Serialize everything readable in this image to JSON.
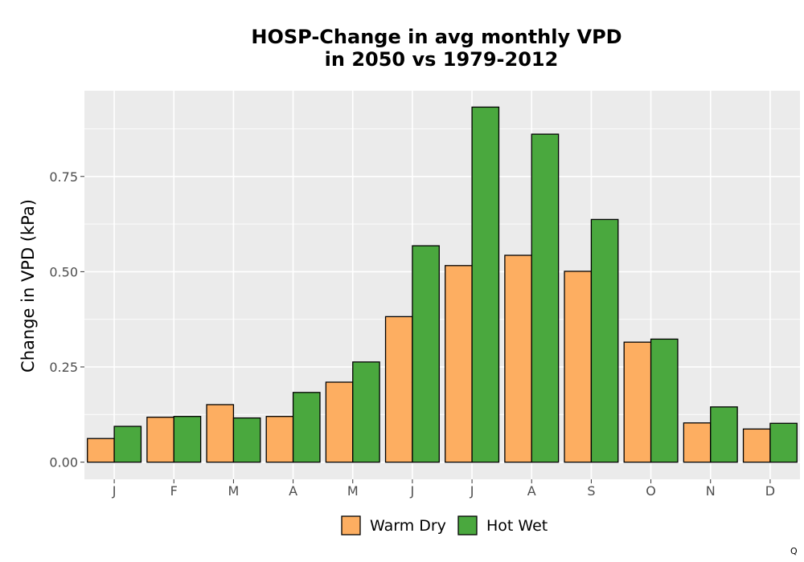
{
  "chart_data": {
    "type": "bar",
    "title": "HOSP-Change in avg monthly VPD",
    "subtitle": "in 2050 vs 1979-2012",
    "xlabel": "",
    "ylabel": "Change in VPD (kPa)",
    "categories": [
      "J",
      "F",
      "M",
      "A",
      "M",
      "J",
      "J",
      "A",
      "S",
      "O",
      "N",
      "D"
    ],
    "series": [
      {
        "name": "Warm Dry",
        "color": "#fdae61",
        "values": [
          0.062,
          0.118,
          0.151,
          0.12,
          0.21,
          0.382,
          0.516,
          0.543,
          0.501,
          0.315,
          0.103,
          0.087
        ]
      },
      {
        "name": "Hot Wet",
        "color": "#4aa83e",
        "values": [
          0.094,
          0.12,
          0.116,
          0.183,
          0.263,
          0.568,
          0.932,
          0.861,
          0.637,
          0.323,
          0.145,
          0.102
        ]
      }
    ],
    "ylim": [
      -0.045,
      0.975
    ],
    "yticks": [
      0.0,
      0.25,
      0.5,
      0.75
    ],
    "ytick_labels": [
      "0.00",
      "0.25",
      "0.50",
      "0.75"
    ],
    "grid": true,
    "legend_position": "bottom",
    "panel_color": "#ebebeb",
    "corner_mark": "Q"
  }
}
